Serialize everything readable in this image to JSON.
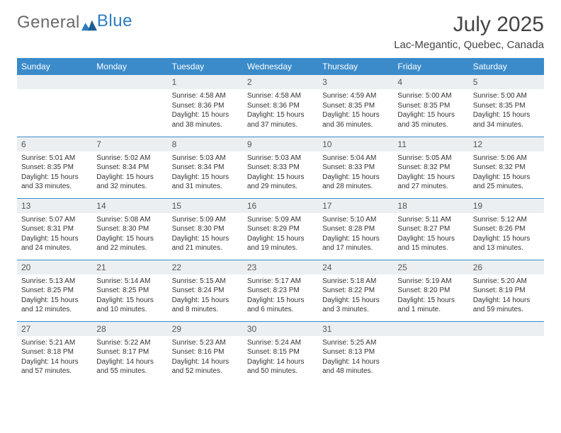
{
  "brand": {
    "part1": "General",
    "part2": "Blue"
  },
  "title": "July 2025",
  "subtitle": "Lac-Megantic, Quebec, Canada",
  "colors": {
    "header_bg": "#3b8bca",
    "header_fg": "#ffffff",
    "daynum_bg": "#eceff1",
    "row_divider": "#3b8bca",
    "text": "#333333",
    "logo_gray": "#6a6a6a",
    "logo_blue": "#2d7cc0"
  },
  "days_of_week": [
    "Sunday",
    "Monday",
    "Tuesday",
    "Wednesday",
    "Thursday",
    "Friday",
    "Saturday"
  ],
  "weeks": [
    [
      null,
      null,
      {
        "n": "1",
        "sunrise": "4:58 AM",
        "sunset": "8:36 PM",
        "daylight": "15 hours and 38 minutes."
      },
      {
        "n": "2",
        "sunrise": "4:58 AM",
        "sunset": "8:36 PM",
        "daylight": "15 hours and 37 minutes."
      },
      {
        "n": "3",
        "sunrise": "4:59 AM",
        "sunset": "8:35 PM",
        "daylight": "15 hours and 36 minutes."
      },
      {
        "n": "4",
        "sunrise": "5:00 AM",
        "sunset": "8:35 PM",
        "daylight": "15 hours and 35 minutes."
      },
      {
        "n": "5",
        "sunrise": "5:00 AM",
        "sunset": "8:35 PM",
        "daylight": "15 hours and 34 minutes."
      }
    ],
    [
      {
        "n": "6",
        "sunrise": "5:01 AM",
        "sunset": "8:35 PM",
        "daylight": "15 hours and 33 minutes."
      },
      {
        "n": "7",
        "sunrise": "5:02 AM",
        "sunset": "8:34 PM",
        "daylight": "15 hours and 32 minutes."
      },
      {
        "n": "8",
        "sunrise": "5:03 AM",
        "sunset": "8:34 PM",
        "daylight": "15 hours and 31 minutes."
      },
      {
        "n": "9",
        "sunrise": "5:03 AM",
        "sunset": "8:33 PM",
        "daylight": "15 hours and 29 minutes."
      },
      {
        "n": "10",
        "sunrise": "5:04 AM",
        "sunset": "8:33 PM",
        "daylight": "15 hours and 28 minutes."
      },
      {
        "n": "11",
        "sunrise": "5:05 AM",
        "sunset": "8:32 PM",
        "daylight": "15 hours and 27 minutes."
      },
      {
        "n": "12",
        "sunrise": "5:06 AM",
        "sunset": "8:32 PM",
        "daylight": "15 hours and 25 minutes."
      }
    ],
    [
      {
        "n": "13",
        "sunrise": "5:07 AM",
        "sunset": "8:31 PM",
        "daylight": "15 hours and 24 minutes."
      },
      {
        "n": "14",
        "sunrise": "5:08 AM",
        "sunset": "8:30 PM",
        "daylight": "15 hours and 22 minutes."
      },
      {
        "n": "15",
        "sunrise": "5:09 AM",
        "sunset": "8:30 PM",
        "daylight": "15 hours and 21 minutes."
      },
      {
        "n": "16",
        "sunrise": "5:09 AM",
        "sunset": "8:29 PM",
        "daylight": "15 hours and 19 minutes."
      },
      {
        "n": "17",
        "sunrise": "5:10 AM",
        "sunset": "8:28 PM",
        "daylight": "15 hours and 17 minutes."
      },
      {
        "n": "18",
        "sunrise": "5:11 AM",
        "sunset": "8:27 PM",
        "daylight": "15 hours and 15 minutes."
      },
      {
        "n": "19",
        "sunrise": "5:12 AM",
        "sunset": "8:26 PM",
        "daylight": "15 hours and 13 minutes."
      }
    ],
    [
      {
        "n": "20",
        "sunrise": "5:13 AM",
        "sunset": "8:25 PM",
        "daylight": "15 hours and 12 minutes."
      },
      {
        "n": "21",
        "sunrise": "5:14 AM",
        "sunset": "8:25 PM",
        "daylight": "15 hours and 10 minutes."
      },
      {
        "n": "22",
        "sunrise": "5:15 AM",
        "sunset": "8:24 PM",
        "daylight": "15 hours and 8 minutes."
      },
      {
        "n": "23",
        "sunrise": "5:17 AM",
        "sunset": "8:23 PM",
        "daylight": "15 hours and 6 minutes."
      },
      {
        "n": "24",
        "sunrise": "5:18 AM",
        "sunset": "8:22 PM",
        "daylight": "15 hours and 3 minutes."
      },
      {
        "n": "25",
        "sunrise": "5:19 AM",
        "sunset": "8:20 PM",
        "daylight": "15 hours and 1 minute."
      },
      {
        "n": "26",
        "sunrise": "5:20 AM",
        "sunset": "8:19 PM",
        "daylight": "14 hours and 59 minutes."
      }
    ],
    [
      {
        "n": "27",
        "sunrise": "5:21 AM",
        "sunset": "8:18 PM",
        "daylight": "14 hours and 57 minutes."
      },
      {
        "n": "28",
        "sunrise": "5:22 AM",
        "sunset": "8:17 PM",
        "daylight": "14 hours and 55 minutes."
      },
      {
        "n": "29",
        "sunrise": "5:23 AM",
        "sunset": "8:16 PM",
        "daylight": "14 hours and 52 minutes."
      },
      {
        "n": "30",
        "sunrise": "5:24 AM",
        "sunset": "8:15 PM",
        "daylight": "14 hours and 50 minutes."
      },
      {
        "n": "31",
        "sunrise": "5:25 AM",
        "sunset": "8:13 PM",
        "daylight": "14 hours and 48 minutes."
      },
      null,
      null
    ]
  ],
  "labels": {
    "sunrise": "Sunrise:",
    "sunset": "Sunset:",
    "daylight": "Daylight:"
  }
}
